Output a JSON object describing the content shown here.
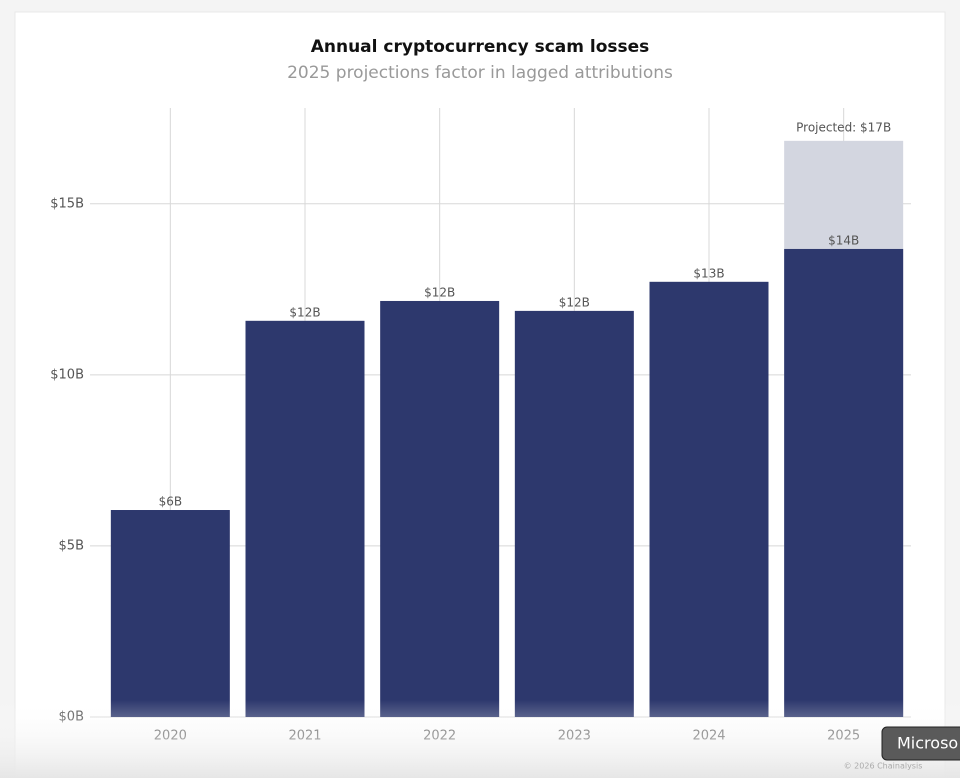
{
  "chart_data": {
    "type": "bar",
    "title": "Annual cryptocurrency scam losses",
    "subtitle": "2025 projections factor in lagged attributions",
    "categories": [
      "2020",
      "2021",
      "2022",
      "2023",
      "2024",
      "2025"
    ],
    "values": [
      6.05,
      11.58,
      12.16,
      11.87,
      12.72,
      13.68
    ],
    "value_labels": [
      "$6B",
      "$12B",
      "$12B",
      "$12B",
      "$13B",
      "$14B"
    ],
    "color": "#2d386d",
    "projected_values": [
      null,
      null,
      null,
      null,
      null,
      16.84
    ],
    "projected_value_labels": [
      null,
      null,
      null,
      null,
      null,
      "Projected: $17B"
    ],
    "projected_color": "#d3d6e0",
    "ylim": [
      0,
      17.8
    ],
    "yticks": [
      {
        "value": 0,
        "label": "$0B"
      },
      {
        "value": 5,
        "label": "$5B"
      },
      {
        "value": 10,
        "label": "$10B"
      },
      {
        "value": 15,
        "label": "$15B"
      }
    ],
    "grid": true
  },
  "footer": {
    "credit": "© 2026 Chainalysis",
    "tooltip": "Microso"
  }
}
